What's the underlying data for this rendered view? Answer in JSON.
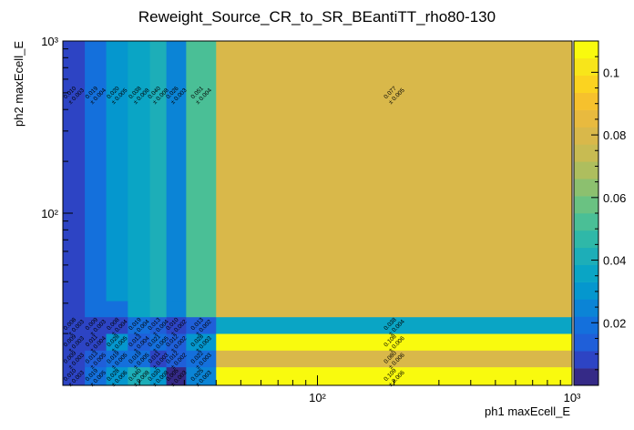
{
  "chart_data": {
    "type": "heatmap",
    "title": "Reweight_Source_CR_to_SR_BEantiTT_rho80-130",
    "xlabel": "ph1 maxEcell_E",
    "ylabel": "ph2 maxEcell_E",
    "x_scale": "log",
    "y_scale": "log",
    "xlim": [
      10,
      1000
    ],
    "ylim": [
      10,
      1000
    ],
    "x_ticks": [
      {
        "value": 100,
        "label": "10²"
      },
      {
        "value": 1000,
        "label": "10³"
      }
    ],
    "y_ticks": [
      {
        "value": 100,
        "label": "10²"
      },
      {
        "value": 1000,
        "label": "10³"
      }
    ],
    "x_edges": [
      10,
      12.2,
      14.8,
      18,
      22,
      25.5,
      30.5,
      40,
      1000
    ],
    "y_edges": [
      10,
      12.8,
      16,
      20,
      25,
      31,
      1000
    ],
    "zlim": [
      0,
      0.11
    ],
    "z_ticks": [
      "0.02",
      "0.04",
      "0.06",
      "0.08",
      "0.1"
    ],
    "z_tick_values": [
      0.02,
      0.04,
      0.06,
      0.08,
      0.1
    ],
    "cells": [
      [
        {
          "v": "0.010",
          "e": "± 0.003"
        },
        {
          "v": "0.019",
          "e": "± 0.005"
        },
        {
          "v": "0.028",
          "e": "± 0.006"
        },
        {
          "v": "0.040",
          "e": "± 0.008"
        },
        {
          "v": "0.030",
          "e": "± 0.008"
        },
        {
          "v": "0.005",
          "e": "± 0.003"
        },
        {
          "v": "0.025",
          "e": "± 0.003"
        },
        {
          "v": "0.109",
          "e": "± 0.006"
        }
      ],
      [
        {
          "v": "0.009",
          "e": "± 0.003"
        },
        {
          "v": "0.013",
          "e": "± 0.005"
        },
        {
          "v": "0.019",
          "e": "± 0.005"
        },
        {
          "v": "0.019",
          "e": "± 0.005"
        },
        {
          "v": "0.011",
          "e": "± 0.003"
        },
        {
          "v": "0.012",
          "e": "± 0.002"
        },
        {
          "v": "0.022",
          "e": "± 0.003"
        },
        {
          "v": "0.080",
          "e": "± 0.006"
        }
      ],
      [
        {
          "v": "0.009",
          "e": "± 0.003"
        },
        {
          "v": "0.011",
          "e": "± 0.004"
        },
        {
          "v": "0.028",
          "e": "± 0.005"
        },
        {
          "v": "0.013",
          "e": "± 0.004"
        },
        {
          "v": "0.021",
          "e": "± 0.005"
        },
        {
          "v": "0.012",
          "e": "± 0.002"
        },
        {
          "v": "0.028",
          "e": "± 0.003"
        },
        {
          "v": "0.108",
          "e": "± 0.006"
        }
      ],
      [
        {
          "v": "0.008",
          "e": "± 0.003"
        },
        {
          "v": "0.009",
          "e": "± 0.003"
        },
        {
          "v": "0.008",
          "e": "± 0.004"
        },
        {
          "v": "0.019",
          "e": "± 0.004"
        },
        {
          "v": "0.013",
          "e": "± 0.004"
        },
        {
          "v": "0.010",
          "e": "± 0.002"
        },
        {
          "v": "0.013",
          "e": "± 0.002"
        },
        {
          "v": "0.038",
          "e": "± 0.004"
        }
      ],
      [
        {
          "v": "0.010",
          "e": "± 0.003"
        },
        {
          "v": "0.019",
          "e": "± 0.004"
        },
        {
          "v": "0.020",
          "e": "± 0.005"
        },
        {
          "v": "0.038",
          "e": "± 0.008"
        },
        {
          "v": "0.040",
          "e": "± 0.008"
        },
        {
          "v": "0.026",
          "e": "± 0.003"
        },
        {
          "v": "0.051",
          "e": "± 0.004"
        },
        {
          "v": "0.077",
          "e": "± 0.005"
        }
      ],
      [
        {
          "v": "0.010",
          "e": "± 0.003"
        },
        {
          "v": "0.019",
          "e": "± 0.004"
        },
        {
          "v": "0.028",
          "e": "± 0.005"
        },
        {
          "v": "0.038",
          "e": "± 0.008"
        },
        {
          "v": "0.040",
          "e": "± 0.008"
        },
        {
          "v": "0.026",
          "e": "± 0.003"
        },
        {
          "v": "0.051",
          "e": "± 0.004"
        },
        {
          "v": "0.077",
          "e": "± 0.005"
        }
      ]
    ],
    "palette": [
      "#352a87",
      "#2d44c4",
      "#1f5fd9",
      "#1470dc",
      "#0b84d6",
      "#0597ce",
      "#0aa5c5",
      "#1daeb8",
      "#2fb8a8",
      "#4abf96",
      "#6ac282",
      "#8cc06f",
      "#aebe5e",
      "#c8bb52",
      "#d9b84a",
      "#e8ba3f",
      "#f6c12d",
      "#fbd320",
      "#f8e51a",
      "#f9fa0e"
    ]
  }
}
